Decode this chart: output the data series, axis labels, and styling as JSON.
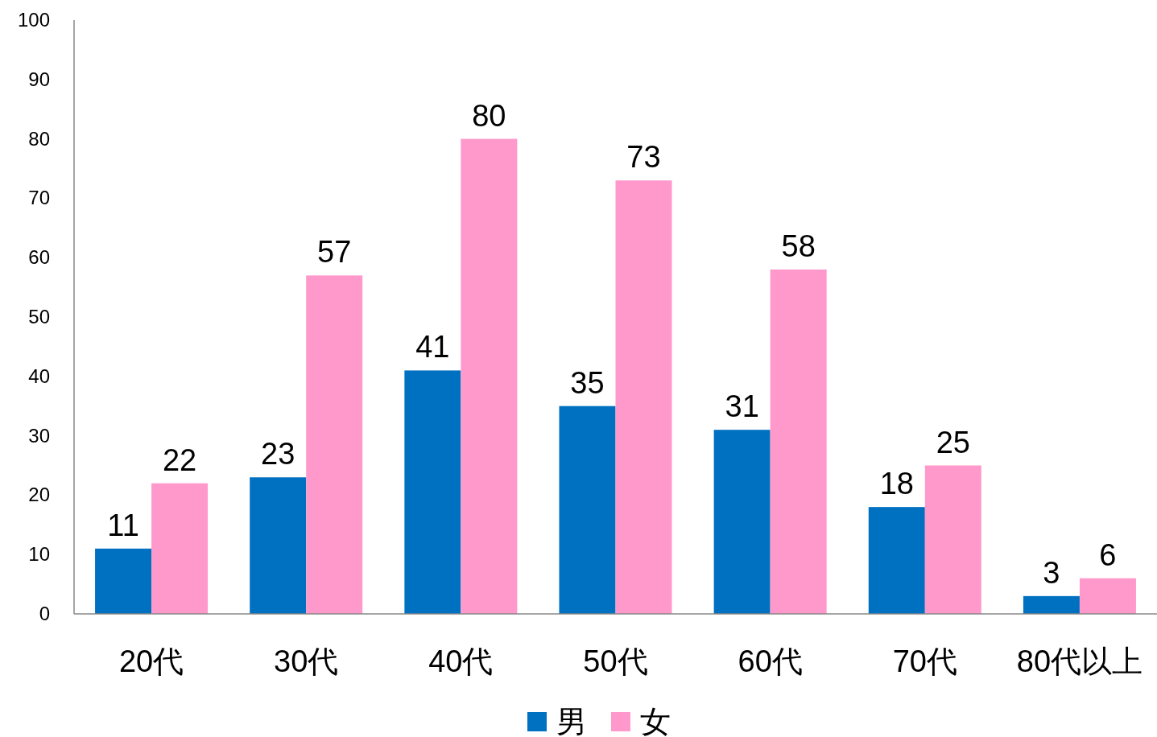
{
  "chart_data": {
    "type": "bar",
    "categories": [
      "20代",
      "30代",
      "40代",
      "50代",
      "60代",
      "70代",
      "80代以上"
    ],
    "series": [
      {
        "name": "男",
        "color": "#0070c0",
        "values": [
          11,
          23,
          41,
          35,
          31,
          18,
          3
        ]
      },
      {
        "name": "女",
        "color": "#ff99cc",
        "values": [
          22,
          57,
          80,
          73,
          58,
          25,
          6
        ]
      }
    ],
    "ylim": [
      0,
      100
    ],
    "yticks": [
      0,
      10,
      20,
      30,
      40,
      50,
      60,
      70,
      80,
      90,
      100
    ],
    "grid": false,
    "legend": "bottom",
    "data_labels": true
  }
}
